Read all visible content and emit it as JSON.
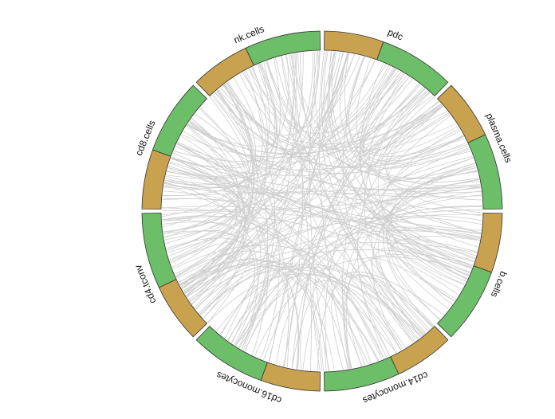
{
  "chart_data": {
    "type": "chord",
    "categories": [
      "pdc",
      "plasma.cells",
      "b.cells",
      "cd14.monocytes",
      "cd16.monocytes",
      "cd4.tconv",
      "cd8.cells",
      "nk.cells"
    ],
    "colors": [
      "#c8a24f",
      "#6dbe69"
    ],
    "chord_color": "#cfcfcf"
  }
}
